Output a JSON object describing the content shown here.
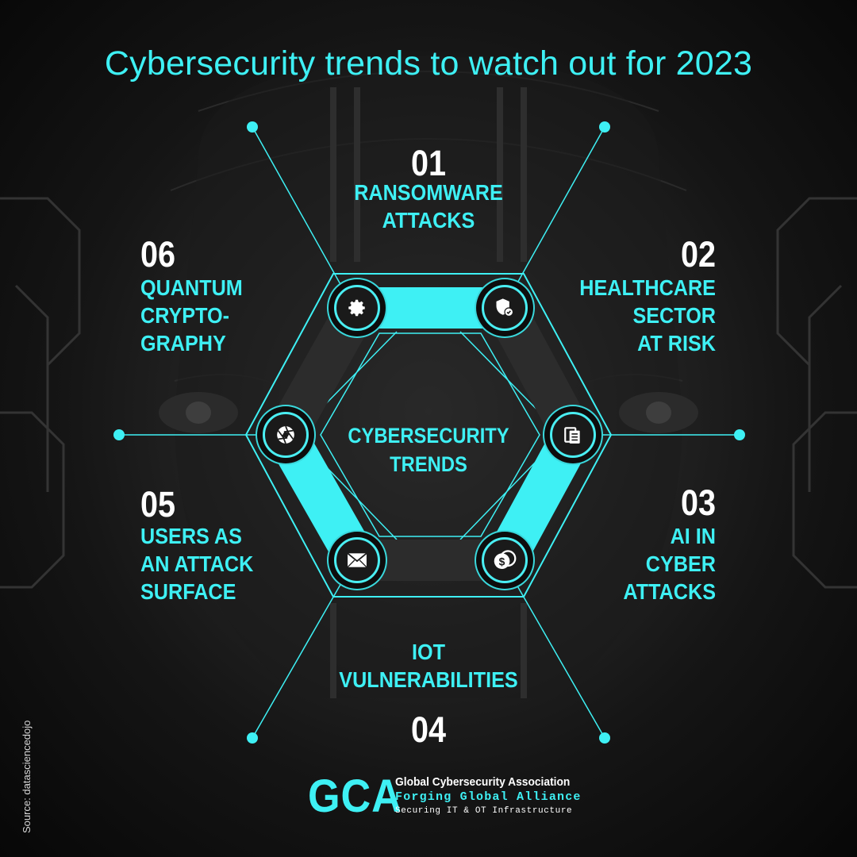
{
  "title": "Cybersecurity trends to watch out for 2023",
  "center_label": "CYBERSECURITY\nTRENDS",
  "trends": [
    {
      "number": "01",
      "label": "RANSOMWARE\nATTACKS",
      "icon": "gear-icon"
    },
    {
      "number": "02",
      "label": "HEALTHCARE\nSECTOR\nAT RISK",
      "icon": "shield-check-icon"
    },
    {
      "number": "03",
      "label": "AI IN\nCYBER\nATTACKS",
      "icon": "documents-icon"
    },
    {
      "number": "04",
      "label": "IOT\nVULNERABILITIES",
      "icon": "coins-dollar-icon"
    },
    {
      "number": "05",
      "label": "USERS AS\nAN ATTACK\nSURFACE",
      "icon": "envelope-icon"
    },
    {
      "number": "06",
      "label": "QUANTUM\nCRYPTO-\nGRAPHY",
      "icon": "aperture-icon"
    }
  ],
  "source": "Source:  datasciencedojo",
  "logo": {
    "acronym": "GCA",
    "name": "Global Cybersecurity Association",
    "tagline": "Forging Global Alliance",
    "subtitle": "Securing IT & OT Infrastructure"
  },
  "colors": {
    "accent": "#3ef0f4",
    "number": "#ffffff",
    "background": "#151515"
  }
}
